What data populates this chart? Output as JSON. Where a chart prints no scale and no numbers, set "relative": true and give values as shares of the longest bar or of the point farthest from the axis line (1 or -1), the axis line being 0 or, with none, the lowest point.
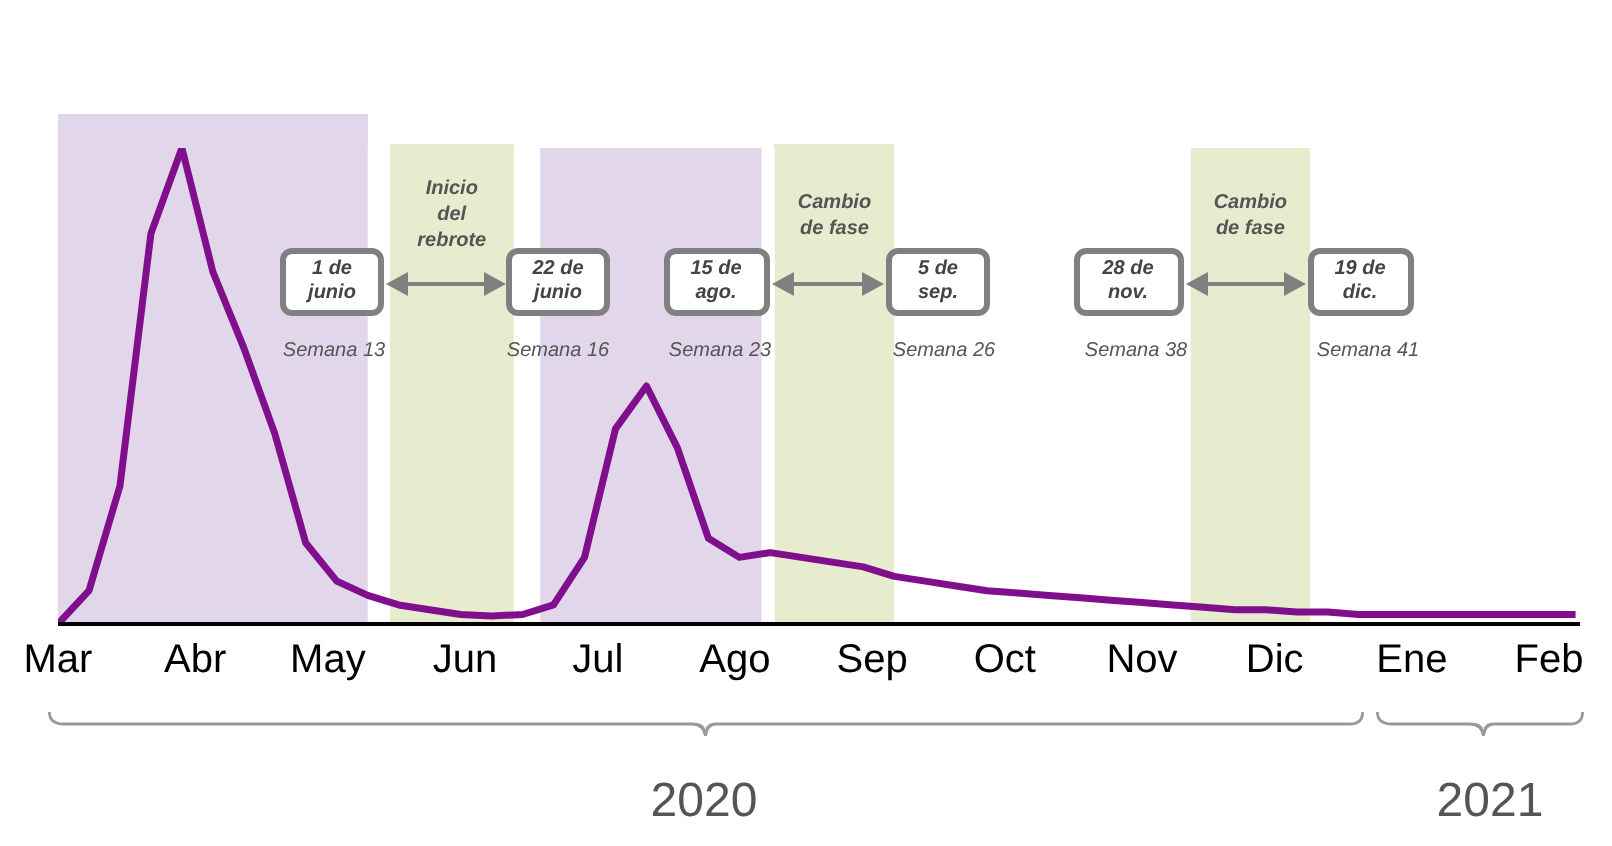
{
  "chart_data": {
    "type": "line",
    "relative": true,
    "marker": "none",
    "x": [
      "2020-03-01",
      "2020-03-08",
      "2020-03-15",
      "2020-03-22",
      "2020-03-29",
      "2020-04-05",
      "2020-04-12",
      "2020-04-19",
      "2020-04-26",
      "2020-05-03",
      "2020-05-10",
      "2020-05-17",
      "2020-05-24",
      "2020-05-31",
      "2020-06-07",
      "2020-06-14",
      "2020-06-21",
      "2020-06-28",
      "2020-07-05",
      "2020-07-12",
      "2020-07-19",
      "2020-07-26",
      "2020-08-02",
      "2020-08-09",
      "2020-08-16",
      "2020-08-23",
      "2020-08-30",
      "2020-09-06",
      "2020-09-13",
      "2020-09-20",
      "2020-09-27",
      "2020-10-04",
      "2020-10-11",
      "2020-10-18",
      "2020-10-25",
      "2020-11-01",
      "2020-11-08",
      "2020-11-15",
      "2020-11-22",
      "2020-11-29",
      "2020-12-06",
      "2020-12-13",
      "2020-12-20",
      "2020-12-27",
      "2021-01-03",
      "2021-01-10",
      "2021-01-17",
      "2021-01-24",
      "2021-01-31",
      "2021-02-07"
    ],
    "series": [
      {
        "color": "#7f0f8c",
        "values": [
          0,
          0.07,
          0.29,
          0.82,
          1,
          0.74,
          0.58,
          0.4,
          0.17,
          0.09,
          0.06,
          0.04,
          0.03,
          0.02,
          0.017,
          0.02,
          0.04,
          0.14,
          0.41,
          0.5,
          0.37,
          0.18,
          0.14,
          0.15,
          0.14,
          0.13,
          0.12,
          0.1,
          0.09,
          0.08,
          0.07,
          0.065,
          0.06,
          0.055,
          0.05,
          0.045,
          0.04,
          0.035,
          0.03,
          0.03,
          0.025,
          0.025,
          0.02,
          0.02,
          0.02,
          0.02,
          0.02,
          0.02,
          0.02,
          0.02
        ]
      }
    ],
    "xlim": [
      "2020-03-01",
      "2021-02-08"
    ],
    "xticks": [
      {
        "value": "2020-03-01",
        "label": "Mar"
      },
      {
        "value": "2020-04-01",
        "label": "Abr"
      },
      {
        "value": "2020-05-01",
        "label": "May"
      },
      {
        "value": "2020-06-01",
        "label": "Jun"
      },
      {
        "value": "2020-07-01",
        "label": "Jul"
      },
      {
        "value": "2020-08-01",
        "label": "Ago"
      },
      {
        "value": "2020-09-01",
        "label": "Sep"
      },
      {
        "value": "2020-10-01",
        "label": "Oct"
      },
      {
        "value": "2020-11-01",
        "label": "Nov"
      },
      {
        "value": "2020-12-01",
        "label": "Dic"
      },
      {
        "value": "2021-01-01",
        "label": "Ene"
      },
      {
        "value": "2021-02-01",
        "label": "Feb"
      }
    ],
    "bands": [
      {
        "axis": "x",
        "from": "2020-03-01",
        "to": "2020-05-10",
        "color": "#e2d6ea"
      },
      {
        "axis": "x",
        "from": "2020-06-18",
        "to": "2020-08-07",
        "color": "#e2d6ea"
      },
      {
        "axis": "x",
        "from": "2020-05-15",
        "to": "2020-06-12",
        "color": "#e8ecce",
        "label": "Inicio del rebrote"
      },
      {
        "axis": "x",
        "from": "2020-08-10",
        "to": "2020-09-06",
        "color": "#e8ecce",
        "label": "Cambio de fase"
      },
      {
        "axis": "x",
        "from": "2020-11-12",
        "to": "2020-12-09",
        "color": "#e8ecce",
        "label": "Cambio de fase"
      }
    ],
    "annotations": [
      "1 de junio",
      "22 de junio",
      "Semana 13",
      "Semana 16",
      "15 de ago.",
      "5 de sep.",
      "Semana 23",
      "Semana 26",
      "28 de nov.",
      "19 de dic.",
      "Semana 38",
      "Semana 41",
      "2020",
      "2021"
    ]
  }
}
